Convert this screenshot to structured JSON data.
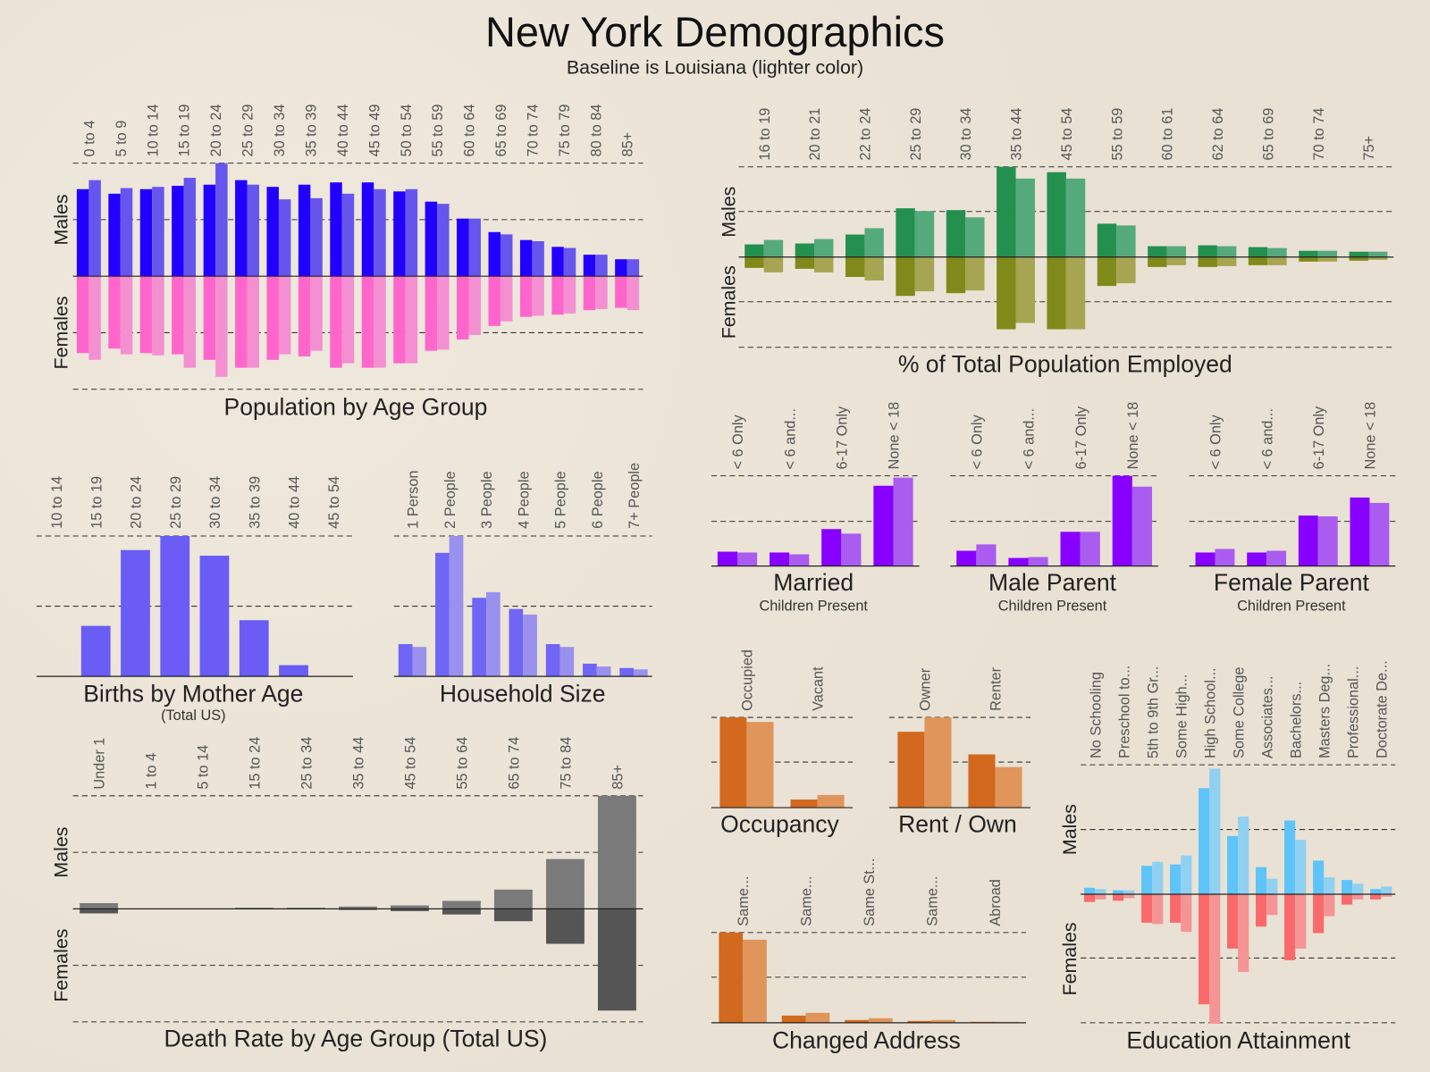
{
  "header": {
    "title": "New York Demographics",
    "subtitle": "Baseline is Louisiana (lighter color)"
  },
  "chart_data": [
    {
      "id": "population",
      "type": "bar",
      "title": "Population by Age Group",
      "subtitle": "",
      "upper_label": "Males",
      "lower_label": "Females",
      "categories": [
        "0 to 4",
        "5 to 9",
        "10 to 14",
        "15 to 19",
        "20 to 24",
        "25 to 29",
        "30 to 34",
        "35 to 39",
        "40 to 44",
        "45 to 49",
        "50 to 54",
        "55 to 59",
        "60 to 64",
        "65 to 69",
        "70 to 74",
        "75 to 79",
        "80 to 84",
        "85+"
      ],
      "series": [
        {
          "role": "primary",
          "side": "upper",
          "color": "#2200ff",
          "values": [
            0.77,
            0.73,
            0.77,
            0.8,
            0.81,
            0.85,
            0.79,
            0.81,
            0.83,
            0.83,
            0.75,
            0.66,
            0.51,
            0.39,
            0.32,
            0.26,
            0.19,
            0.15
          ]
        },
        {
          "role": "baseline",
          "side": "upper",
          "color": "#6656ee",
          "values": [
            0.85,
            0.78,
            0.79,
            0.87,
            1.0,
            0.81,
            0.68,
            0.69,
            0.73,
            0.77,
            0.77,
            0.64,
            0.51,
            0.37,
            0.31,
            0.25,
            0.19,
            0.15
          ]
        },
        {
          "role": "primary",
          "side": "lower",
          "color": "#ff66cc",
          "values": [
            0.68,
            0.64,
            0.68,
            0.69,
            0.74,
            0.81,
            0.74,
            0.71,
            0.81,
            0.81,
            0.77,
            0.66,
            0.56,
            0.44,
            0.36,
            0.34,
            0.3,
            0.28
          ]
        },
        {
          "role": "baseline",
          "side": "lower",
          "color": "#f48fd2",
          "values": [
            0.74,
            0.69,
            0.7,
            0.81,
            0.89,
            0.81,
            0.69,
            0.66,
            0.77,
            0.81,
            0.77,
            0.65,
            0.52,
            0.4,
            0.35,
            0.33,
            0.29,
            0.3
          ]
        }
      ]
    },
    {
      "id": "employment",
      "type": "bar",
      "title": "% of Total Population Employed",
      "subtitle": "",
      "upper_label": "Males",
      "lower_label": "Females",
      "categories": [
        "16 to 19",
        "20 to 21",
        "22 to 24",
        "25 to 29",
        "30 to 34",
        "35 to 44",
        "45 to 54",
        "55 to 59",
        "60 to 61",
        "62 to 64",
        "65 to 69",
        "70 to 74",
        "75+"
      ],
      "series": [
        {
          "role": "primary",
          "side": "upper",
          "color": "#239050",
          "values": [
            0.14,
            0.15,
            0.25,
            0.54,
            0.52,
            1.0,
            0.94,
            0.37,
            0.12,
            0.13,
            0.11,
            0.07,
            0.06
          ]
        },
        {
          "role": "baseline",
          "side": "upper",
          "color": "#55aa7c",
          "values": [
            0.19,
            0.2,
            0.32,
            0.51,
            0.44,
            0.87,
            0.87,
            0.35,
            0.12,
            0.12,
            0.1,
            0.07,
            0.06
          ]
        },
        {
          "role": "primary",
          "side": "lower",
          "color": "#7f8a1a",
          "values": [
            0.12,
            0.13,
            0.22,
            0.43,
            0.4,
            0.8,
            0.8,
            0.32,
            0.11,
            0.11,
            0.09,
            0.05,
            0.04
          ]
        },
        {
          "role": "baseline",
          "side": "lower",
          "color": "#a6a552",
          "values": [
            0.17,
            0.17,
            0.26,
            0.38,
            0.37,
            0.73,
            0.8,
            0.29,
            0.09,
            0.1,
            0.09,
            0.05,
            0.03
          ]
        }
      ]
    },
    {
      "id": "married",
      "type": "bar",
      "title": "Married",
      "subtitle": "Children Present",
      "categories": [
        "< 6 Only",
        "< 6 and...",
        "6-17 Only",
        "None < 18"
      ],
      "series": [
        {
          "role": "primary",
          "side": "upper",
          "color": "#8800ff",
          "values": [
            0.16,
            0.15,
            0.41,
            0.89
          ]
        },
        {
          "role": "baseline",
          "side": "upper",
          "color": "#aa5cf0",
          "values": [
            0.15,
            0.13,
            0.36,
            0.98
          ]
        }
      ]
    },
    {
      "id": "male_parent",
      "type": "bar",
      "title": "Male Parent",
      "subtitle": "Children Present",
      "categories": [
        "< 6 Only",
        "< 6 and...",
        "6-17 Only",
        "None < 18"
      ],
      "series": [
        {
          "role": "primary",
          "side": "upper",
          "color": "#8800ff",
          "values": [
            0.17,
            0.09,
            0.38,
            1.0
          ]
        },
        {
          "role": "baseline",
          "side": "upper",
          "color": "#aa5cf0",
          "values": [
            0.24,
            0.1,
            0.38,
            0.88
          ]
        }
      ]
    },
    {
      "id": "female_parent",
      "type": "bar",
      "title": "Female Parent",
      "subtitle": "Children Present",
      "categories": [
        "< 6 Only",
        "< 6 and...",
        "6-17 Only",
        "None < 18"
      ],
      "series": [
        {
          "role": "primary",
          "side": "upper",
          "color": "#8800ff",
          "values": [
            0.15,
            0.15,
            0.56,
            0.76
          ]
        },
        {
          "role": "baseline",
          "side": "upper",
          "color": "#aa5cf0",
          "values": [
            0.19,
            0.17,
            0.55,
            0.7
          ]
        }
      ]
    },
    {
      "id": "births",
      "type": "bar",
      "title": "Births by Mother Age",
      "subtitle": "(Total US)",
      "categories": [
        "10 to 14",
        "15 to 19",
        "20 to 24",
        "25 to 29",
        "30 to 34",
        "35 to 39",
        "40 to 44",
        "45 to 54"
      ],
      "series": [
        {
          "role": "primary",
          "side": "upper",
          "color": "#6a5cf5",
          "values": [
            0,
            0.36,
            0.9,
            1.0,
            0.86,
            0.4,
            0.08,
            0
          ]
        }
      ]
    },
    {
      "id": "household",
      "type": "bar",
      "title": "Household Size",
      "subtitle": "",
      "categories": [
        "1 Person",
        "2 People",
        "3 People",
        "4 People",
        "5 People",
        "6 People",
        "7+ People"
      ],
      "series": [
        {
          "role": "primary",
          "side": "upper",
          "color": "#7066f5",
          "values": [
            0.23,
            0.88,
            0.56,
            0.48,
            0.23,
            0.09,
            0.06
          ]
        },
        {
          "role": "baseline",
          "side": "upper",
          "color": "#9a90ee",
          "values": [
            0.21,
            1.0,
            0.6,
            0.44,
            0.21,
            0.07,
            0.05
          ]
        }
      ]
    },
    {
      "id": "death",
      "type": "bar",
      "title": "Death Rate by Age Group (Total US)",
      "subtitle": "",
      "upper_label": "Males",
      "lower_label": "Females",
      "categories": [
        "Under 1",
        "1 to 4",
        "5 to 14",
        "15 to 24",
        "25 to 34",
        "35 to 44",
        "45 to 54",
        "55 to 64",
        "65 to 74",
        "75 to 84",
        "85+"
      ],
      "series": [
        {
          "role": "primary",
          "side": "upper",
          "color": "#7a7a7a",
          "values": [
            0.05,
            0,
            0,
            0.01,
            0.01,
            0.02,
            0.03,
            0.07,
            0.17,
            0.44,
            1.0
          ]
        },
        {
          "role": "primary",
          "side": "lower",
          "color": "#555555",
          "values": [
            0.04,
            0,
            0,
            0,
            0,
            0.01,
            0.02,
            0.05,
            0.11,
            0.31,
            0.9
          ]
        }
      ]
    },
    {
      "id": "occupancy",
      "type": "bar",
      "title": "Occupancy",
      "subtitle": "",
      "categories": [
        "Occupied",
        "Vacant"
      ],
      "series": [
        {
          "role": "primary",
          "side": "upper",
          "color": "#d2691e",
          "values": [
            1.0,
            0.09
          ]
        },
        {
          "role": "baseline",
          "side": "upper",
          "color": "#e0955a",
          "values": [
            0.95,
            0.14
          ]
        }
      ]
    },
    {
      "id": "rent_own",
      "type": "bar",
      "title": "Rent / Own",
      "subtitle": "",
      "categories": [
        "Owner",
        "Renter"
      ],
      "series": [
        {
          "role": "primary",
          "side": "upper",
          "color": "#d2691e",
          "values": [
            0.84,
            0.59
          ]
        },
        {
          "role": "baseline",
          "side": "upper",
          "color": "#e0955a",
          "values": [
            1.0,
            0.45
          ]
        }
      ]
    },
    {
      "id": "changed_address",
      "type": "bar",
      "title": "Changed Address",
      "subtitle": "",
      "categories": [
        "Same...",
        "Same...",
        "Same St...",
        "Same...",
        "Abroad"
      ],
      "series": [
        {
          "role": "primary",
          "side": "upper",
          "color": "#d2691e",
          "values": [
            1.0,
            0.08,
            0.03,
            0.02,
            0.01
          ]
        },
        {
          "role": "baseline",
          "side": "upper",
          "color": "#e0955a",
          "values": [
            0.92,
            0.11,
            0.05,
            0.03,
            0.01
          ]
        }
      ]
    },
    {
      "id": "education",
      "type": "bar",
      "title": "Education Attainment",
      "subtitle": "",
      "upper_label": "Males",
      "lower_label": "Females",
      "categories": [
        "No Schooling",
        "Preschool to...",
        "5th to 9th Gr...",
        "Some High...",
        "High School...",
        "Some College",
        "Associates...",
        "Bachelors...",
        "Masters Deg...",
        "Professional...",
        "Doctorate De..."
      ],
      "series": [
        {
          "role": "primary",
          "side": "upper",
          "color": "#5ec4fa",
          "values": [
            0.05,
            0.03,
            0.22,
            0.23,
            0.82,
            0.45,
            0.21,
            0.57,
            0.26,
            0.11,
            0.04
          ]
        },
        {
          "role": "baseline",
          "side": "upper",
          "color": "#90d0f0",
          "values": [
            0.04,
            0.03,
            0.25,
            0.3,
            0.97,
            0.6,
            0.12,
            0.42,
            0.13,
            0.08,
            0.06
          ]
        },
        {
          "role": "primary",
          "side": "lower",
          "color": "#fa6a6a",
          "values": [
            0.06,
            0.05,
            0.22,
            0.22,
            0.85,
            0.42,
            0.25,
            0.51,
            0.3,
            0.08,
            0.04
          ]
        },
        {
          "role": "baseline",
          "side": "lower",
          "color": "#f59494",
          "values": [
            0.04,
            0.03,
            0.23,
            0.29,
            1.0,
            0.6,
            0.16,
            0.42,
            0.17,
            0.04,
            0.02
          ]
        }
      ]
    }
  ]
}
